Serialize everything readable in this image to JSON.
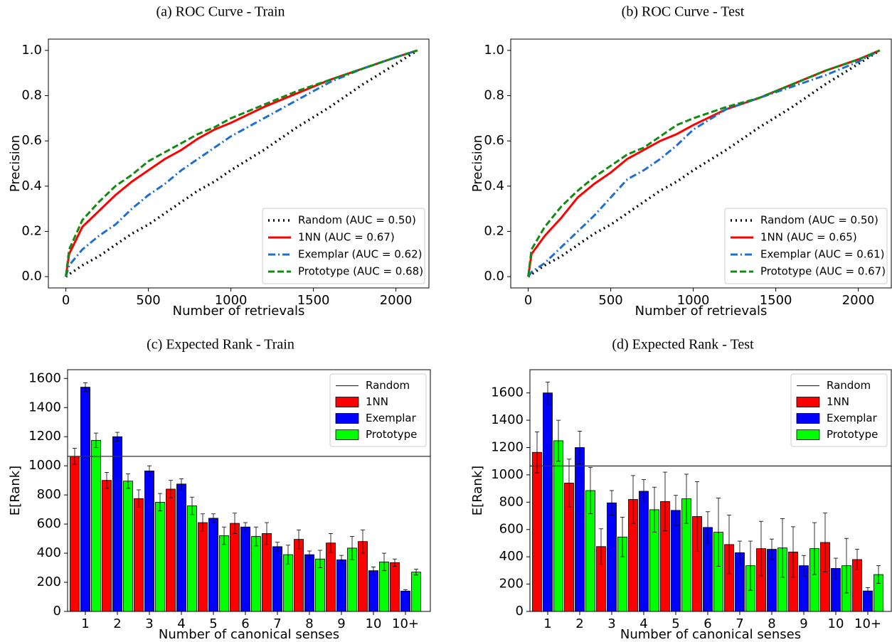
{
  "chart_data": [
    {
      "type": "line",
      "title": "(a) ROC Curve - Train",
      "x_label": "Number of retrievals",
      "y_label": "Precision",
      "x": [
        0,
        20,
        100,
        200,
        300,
        400,
        500,
        600,
        700,
        800,
        900,
        1000,
        1200,
        1400,
        1600,
        1800,
        2000,
        2130
      ],
      "series": [
        {
          "name": "Random (AUC = 0.50)",
          "color": "#000000",
          "linestyle": "dotted",
          "values": [
            0,
            0.01,
            0.05,
            0.09,
            0.14,
            0.19,
            0.23,
            0.28,
            0.33,
            0.38,
            0.42,
            0.47,
            0.56,
            0.66,
            0.75,
            0.85,
            0.94,
            1.0
          ]
        },
        {
          "name": "1NN (AUC = 0.67)",
          "color": "#ff0000",
          "linestyle": "solid",
          "values": [
            0,
            0.1,
            0.22,
            0.29,
            0.36,
            0.42,
            0.47,
            0.52,
            0.56,
            0.61,
            0.65,
            0.68,
            0.75,
            0.81,
            0.87,
            0.92,
            0.97,
            1.0
          ]
        },
        {
          "name": "Exemplar (AUC = 0.62)",
          "color": "#1f6fd0",
          "linestyle": "dashdot",
          "values": [
            0,
            0.05,
            0.12,
            0.18,
            0.23,
            0.3,
            0.36,
            0.41,
            0.47,
            0.52,
            0.57,
            0.62,
            0.7,
            0.78,
            0.86,
            0.92,
            0.97,
            1.0
          ]
        },
        {
          "name": "Prototype (AUC = 0.68)",
          "color": "#138a13",
          "linestyle": "dashed",
          "values": [
            0,
            0.12,
            0.25,
            0.33,
            0.4,
            0.45,
            0.51,
            0.55,
            0.59,
            0.63,
            0.66,
            0.7,
            0.76,
            0.82,
            0.87,
            0.92,
            0.97,
            1.0
          ]
        }
      ],
      "xlim": [
        -106,
        2200
      ],
      "xticks": [
        0,
        500,
        1000,
        1500,
        2000
      ],
      "ylim": [
        -0.05,
        1.05
      ],
      "yticks": [
        {
          "value": 0,
          "label": "0.0"
        },
        0.2,
        0.4,
        0.6,
        0.8,
        {
          "value": 1,
          "label": "1.0"
        }
      ],
      "legend": "lower right"
    },
    {
      "type": "line",
      "title": "(b) ROC Curve - Test",
      "x_label": "Number of retrievals",
      "y_label": "Precision",
      "x": [
        0,
        20,
        100,
        200,
        300,
        400,
        500,
        600,
        700,
        800,
        900,
        1000,
        1200,
        1400,
        1600,
        1800,
        2000,
        2130
      ],
      "series": [
        {
          "name": "Random (AUC = 0.50)",
          "color": "#000000",
          "linestyle": "dotted",
          "values": [
            0,
            0.01,
            0.05,
            0.09,
            0.14,
            0.19,
            0.23,
            0.28,
            0.33,
            0.38,
            0.42,
            0.47,
            0.56,
            0.66,
            0.75,
            0.85,
            0.94,
            1.0
          ]
        },
        {
          "name": "1NN (AUC = 0.65)",
          "color": "#ff0000",
          "linestyle": "solid",
          "values": [
            0,
            0.1,
            0.18,
            0.26,
            0.35,
            0.41,
            0.46,
            0.52,
            0.56,
            0.6,
            0.63,
            0.67,
            0.74,
            0.79,
            0.85,
            0.91,
            0.96,
            1.0
          ]
        },
        {
          "name": "Exemplar (AUC = 0.61)",
          "color": "#1f6fd0",
          "linestyle": "dashdot",
          "values": [
            0,
            0.02,
            0.06,
            0.13,
            0.2,
            0.27,
            0.35,
            0.43,
            0.47,
            0.52,
            0.58,
            0.65,
            0.74,
            0.79,
            0.84,
            0.89,
            0.95,
            1.0
          ]
        },
        {
          "name": "Prototype (AUC = 0.67)",
          "color": "#138a13",
          "linestyle": "dashed",
          "values": [
            0,
            0.12,
            0.22,
            0.31,
            0.38,
            0.44,
            0.49,
            0.54,
            0.57,
            0.62,
            0.67,
            0.7,
            0.75,
            0.79,
            0.85,
            0.91,
            0.96,
            1.0
          ]
        }
      ],
      "xlim": [
        -106,
        2200
      ],
      "xticks": [
        0,
        500,
        1000,
        1500,
        2000
      ],
      "ylim": [
        -0.05,
        1.05
      ],
      "yticks": [
        {
          "value": 0,
          "label": "0.0"
        },
        0.2,
        0.4,
        0.6,
        0.8,
        {
          "value": 1,
          "label": "1.0"
        }
      ],
      "legend": "lower right"
    },
    {
      "type": "bar",
      "title": "(c) Expected Rank - Train",
      "x_label": "Number of canonical senses",
      "y_label": "E[Rank]",
      "categories": [
        "1",
        "2",
        "3",
        "4",
        "5",
        "6",
        "7",
        "8",
        "9",
        "10",
        "10+"
      ],
      "reference_line": {
        "name": "Random",
        "value": 1065,
        "color": "#333333"
      },
      "series": [
        {
          "name": "1NN",
          "color": "#ff0000",
          "values": [
            1065,
            900,
            775,
            840,
            610,
            605,
            535,
            495,
            470,
            480,
            335
          ],
          "errors": [
            55,
            55,
            60,
            60,
            60,
            70,
            75,
            65,
            65,
            80,
            25
          ]
        },
        {
          "name": "Exemplar",
          "color": "#0000ff",
          "values": [
            1540,
            1200,
            965,
            875,
            640,
            580,
            445,
            390,
            355,
            280,
            140
          ],
          "errors": [
            30,
            30,
            35,
            35,
            30,
            30,
            30,
            25,
            30,
            25,
            10
          ]
        },
        {
          "name": "Prototype",
          "color": "#00ff00",
          "values": [
            1175,
            895,
            750,
            725,
            520,
            515,
            390,
            360,
            435,
            340,
            270
          ],
          "errors": [
            50,
            50,
            60,
            60,
            60,
            65,
            65,
            60,
            80,
            60,
            20
          ]
        }
      ],
      "ylim": [
        0,
        1660
      ],
      "yticks": [
        0,
        200,
        400,
        600,
        800,
        1000,
        1200,
        1400,
        1600
      ],
      "legend": "upper right"
    },
    {
      "type": "bar",
      "title": "(d) Expected Rank - Test",
      "x_label": "Number of canonical senses",
      "y_label": "E[Rank]",
      "categories": [
        "1",
        "2",
        "3",
        "4",
        "5",
        "6",
        "7",
        "8",
        "9",
        "10",
        "10+"
      ],
      "reference_line": {
        "name": "Random",
        "value": 1065,
        "color": "#333333"
      },
      "series": [
        {
          "name": "1NN",
          "color": "#ff0000",
          "values": [
            1165,
            940,
            475,
            820,
            805,
            695,
            490,
            460,
            435,
            505,
            380
          ],
          "errors": [
            150,
            175,
            130,
            175,
            215,
            255,
            215,
            200,
            185,
            215,
            75
          ]
        },
        {
          "name": "Exemplar",
          "color": "#0000ff",
          "values": [
            1600,
            1200,
            795,
            880,
            740,
            615,
            430,
            455,
            335,
            315,
            150
          ],
          "errors": [
            80,
            120,
            90,
            85,
            110,
            115,
            85,
            75,
            75,
            75,
            25
          ]
        },
        {
          "name": "Prototype",
          "color": "#00ff00",
          "values": [
            1250,
            885,
            545,
            745,
            825,
            580,
            335,
            465,
            460,
            335,
            270
          ],
          "errors": [
            150,
            170,
            145,
            165,
            180,
            250,
            180,
            215,
            190,
            200,
            65
          ]
        }
      ],
      "ylim": [
        0,
        1770
      ],
      "yticks": [
        0,
        200,
        400,
        600,
        800,
        1000,
        1200,
        1400,
        1600
      ],
      "legend": "upper right"
    }
  ]
}
